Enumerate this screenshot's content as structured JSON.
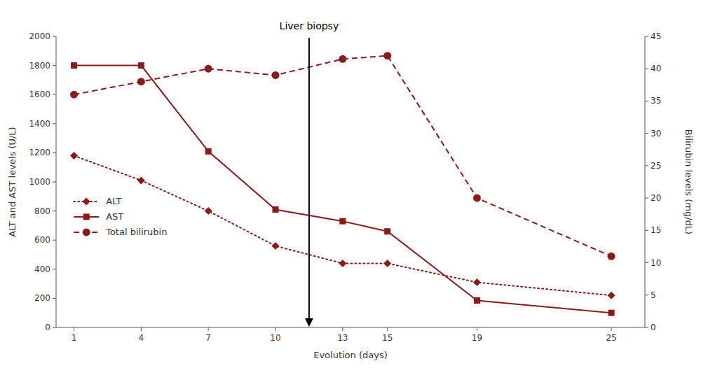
{
  "chart_data": {
    "type": "line",
    "x": [
      1,
      4,
      7,
      10,
      13,
      15,
      19,
      25
    ],
    "xlabel": "Evolution (days)",
    "ylabel": "ALT and AST levels (U/L)",
    "y2label": "Bilirubin levels (mg/dL)",
    "xlim": [
      0.2,
      26.5
    ],
    "xticks": [
      1,
      4,
      7,
      10,
      13,
      15,
      19,
      25
    ],
    "ylim": [
      0,
      2000
    ],
    "yticks": [
      0,
      200,
      400,
      600,
      800,
      1000,
      1200,
      1400,
      1600,
      1800,
      2000
    ],
    "y2lim": [
      0,
      45
    ],
    "y2ticks": [
      0,
      5,
      10,
      15,
      20,
      25,
      30,
      35,
      40,
      45
    ],
    "grid": false,
    "legend": "left",
    "series": [
      {
        "name": "ALT",
        "color": "#8b1a1a",
        "marker": "diamond",
        "line_style": "dotted",
        "values": [
          1180,
          1010,
          800,
          560,
          440,
          440,
          310,
          220
        ]
      },
      {
        "name": "AST",
        "color": "#8b1a1a",
        "marker": "square",
        "line_style": "solid",
        "values": [
          1800,
          1800,
          1210,
          810,
          730,
          660,
          185,
          100
        ]
      },
      {
        "name": "Total bilirubin",
        "color": "#8b1a1a",
        "marker": "circle",
        "line_style": "dashed",
        "axis": "y2",
        "values": [
          36,
          38,
          40,
          39,
          41.5,
          42,
          20,
          11
        ]
      }
    ],
    "annotations": [
      {
        "text": "Liver biopsy",
        "x": 11.5
      }
    ]
  }
}
